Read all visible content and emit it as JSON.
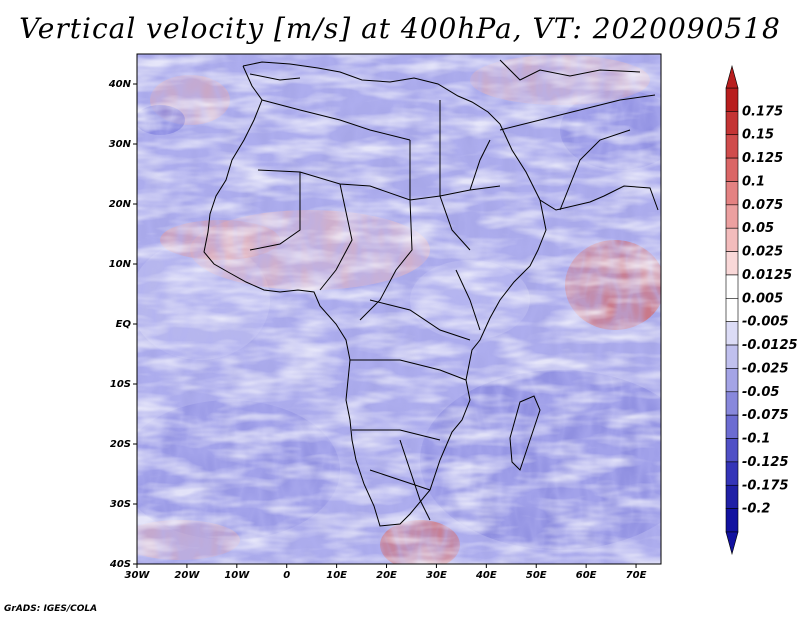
{
  "title": "Vertical velocity [m/s] at 400hPa, VT: 2020090518",
  "credit": "GrADS: IGES/COLA",
  "map": {
    "lon_range": [
      -30,
      75
    ],
    "lat_range": [
      -40,
      45
    ],
    "x_ticks": [
      "30W",
      "20W",
      "10W",
      "0",
      "10E",
      "20E",
      "30E",
      "40E",
      "50E",
      "60E",
      "70E"
    ],
    "y_ticks": [
      "40N",
      "30N",
      "20N",
      "10N",
      "EQ",
      "10S",
      "20S",
      "30S",
      "40S"
    ]
  },
  "colorbar": {
    "labels": [
      "0.175",
      "0.15",
      "0.125",
      "0.1",
      "0.075",
      "0.05",
      "0.025",
      "0.0125",
      "0.005",
      "-0.005",
      "-0.0125",
      "-0.025",
      "-0.05",
      "-0.075",
      "-0.1",
      "-0.125",
      "-0.175",
      "-0.2"
    ],
    "colors": [
      "#b81e1e",
      "#c43434",
      "#d04c4c",
      "#db6666",
      "#e48282",
      "#eca0a0",
      "#f3bcbc",
      "#f9d8d8",
      "#ffffff",
      "#ffffff",
      "#dcdcf6",
      "#c0c0ee",
      "#a4a4e6",
      "#8888dc",
      "#6c6cd2",
      "#5050c6",
      "#3434b8",
      "#2020a6",
      "#1212a0"
    ]
  }
}
